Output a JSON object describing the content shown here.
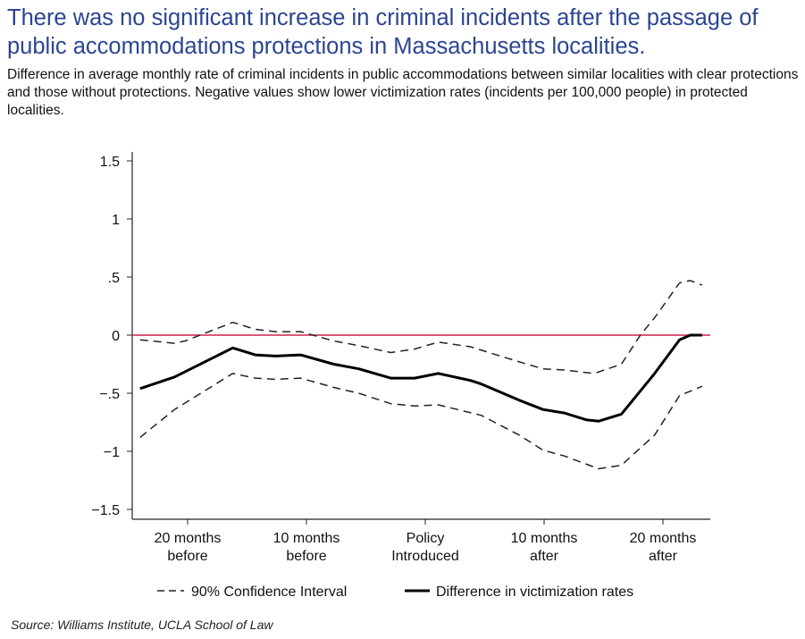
{
  "title": "There was no significant increase in criminal incidents after the passage of public accommodations protections in Massachusetts localities.",
  "subtitle": "Difference in average monthly rate of criminal incidents in public accommodations between similar localities with clear protections and those without protections. Negative values show lower victimization rates (incidents per 100,000 people) in protected localities.",
  "source": "Source: Williams Institute, UCLA School of Law",
  "colors": {
    "title": "#2b4590",
    "zero_line": "#d0204a",
    "series": "#000000"
  },
  "chart_data": {
    "type": "line",
    "xlim": [
      -24.7,
      24
    ],
    "ylim": [
      -1.5,
      1.5
    ],
    "grid": false,
    "legend_placement": "bottom",
    "x_ticks": [
      {
        "value": -20,
        "label": [
          "20 months",
          "before"
        ]
      },
      {
        "value": -10,
        "label": [
          "10 months",
          "before"
        ]
      },
      {
        "value": 0,
        "label": [
          "Policy",
          "Introduced"
        ]
      },
      {
        "value": 10,
        "label": [
          "10 months",
          "after"
        ]
      },
      {
        "value": 20,
        "label": [
          "20 months",
          "after"
        ]
      }
    ],
    "y_ticks": [
      {
        "value": 1.5,
        "label": "1.5"
      },
      {
        "value": 1,
        "label": "1"
      },
      {
        "value": 0.5,
        "label": ".5"
      },
      {
        "value": 0,
        "label": "0"
      },
      {
        "value": -0.5,
        "label": "−.5"
      },
      {
        "value": -1,
        "label": "−1"
      },
      {
        "value": -1.5,
        "label": "−1.5"
      }
    ],
    "reference_line": {
      "y": 0
    },
    "series": [
      {
        "name": "Difference in victimization rates",
        "style": "solid",
        "points": [
          [
            -24,
            -0.46
          ],
          [
            -21.1,
            -0.36
          ],
          [
            -16.2,
            -0.11
          ],
          [
            -14.3,
            -0.17
          ],
          [
            -12.6,
            -0.18
          ],
          [
            -10.5,
            -0.17
          ],
          [
            -7.7,
            -0.25
          ],
          [
            -5.6,
            -0.29
          ],
          [
            -2.9,
            -0.37
          ],
          [
            -0.9,
            -0.37
          ],
          [
            1.1,
            -0.33
          ],
          [
            3.8,
            -0.39
          ],
          [
            4.7,
            -0.42
          ],
          [
            7.9,
            -0.56
          ],
          [
            9.9,
            -0.64
          ],
          [
            11.7,
            -0.67
          ],
          [
            13.6,
            -0.73
          ],
          [
            14.6,
            -0.74
          ],
          [
            16.5,
            -0.68
          ],
          [
            19.3,
            -0.33
          ],
          [
            21.4,
            -0.04
          ],
          [
            22.3,
            0
          ],
          [
            23.3,
            0
          ]
        ]
      },
      {
        "name": "90% Confidence Interval",
        "style": "dashed",
        "points": [
          [
            -24,
            -0.04
          ],
          [
            -21.1,
            -0.07
          ],
          [
            -20.2,
            -0.05
          ],
          [
            -16.2,
            0.11
          ],
          [
            -14.3,
            0.05
          ],
          [
            -12.6,
            0.03
          ],
          [
            -10.5,
            0.03
          ],
          [
            -7.7,
            -0.05
          ],
          [
            -5.6,
            -0.09
          ],
          [
            -2.9,
            -0.15
          ],
          [
            -0.9,
            -0.12
          ],
          [
            1.1,
            -0.06
          ],
          [
            3.8,
            -0.1
          ],
          [
            7.9,
            -0.23
          ],
          [
            9.9,
            -0.29
          ],
          [
            11.7,
            -0.3
          ],
          [
            14.2,
            -0.33
          ],
          [
            16.5,
            -0.25
          ],
          [
            18.1,
            0
          ],
          [
            19.3,
            0.15
          ],
          [
            21.4,
            0.45
          ],
          [
            22.3,
            0.47
          ],
          [
            23.3,
            0.43
          ]
        ]
      },
      {
        "name": "90% Confidence Interval",
        "style": "dashed",
        "points": [
          [
            -24,
            -0.88
          ],
          [
            -21.1,
            -0.64
          ],
          [
            -16.2,
            -0.33
          ],
          [
            -14.3,
            -0.37
          ],
          [
            -12.6,
            -0.38
          ],
          [
            -10.5,
            -0.37
          ],
          [
            -7.7,
            -0.45
          ],
          [
            -5.6,
            -0.5
          ],
          [
            -2.9,
            -0.59
          ],
          [
            -0.9,
            -0.61
          ],
          [
            1.1,
            -0.6
          ],
          [
            4.7,
            -0.69
          ],
          [
            7.9,
            -0.86
          ],
          [
            9.9,
            -0.99
          ],
          [
            11.7,
            -1.04
          ],
          [
            14.6,
            -1.15
          ],
          [
            16.5,
            -1.12
          ],
          [
            19.3,
            -0.86
          ],
          [
            21.4,
            -0.52
          ],
          [
            23.3,
            -0.44
          ]
        ]
      }
    ],
    "legend": [
      {
        "label": "90% Confidence Interval",
        "style": "dashed"
      },
      {
        "label": "Difference in victimization rates",
        "style": "solid"
      }
    ]
  }
}
